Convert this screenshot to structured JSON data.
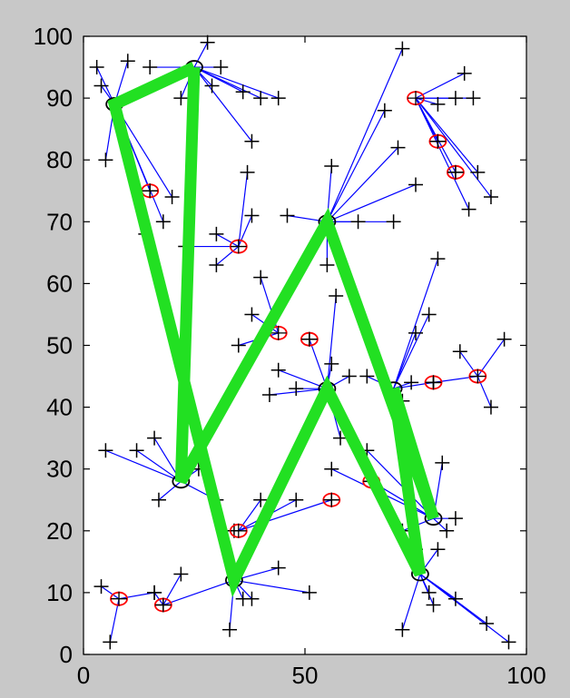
{
  "chart_data": {
    "type": "scatter",
    "title": "",
    "xlabel": "",
    "ylabel": "",
    "xlim": [
      0,
      100
    ],
    "ylim": [
      0,
      100
    ],
    "xticks": [
      0,
      50,
      100
    ],
    "yticks": [
      0,
      10,
      20,
      30,
      40,
      50,
      60,
      70,
      80,
      90,
      100
    ],
    "grid": false,
    "legend": "none",
    "colors": {
      "background": "#c8c8c8",
      "axes": "#ffffff",
      "nodes": "#000000",
      "links": "#0000ff",
      "facilities": "#ff0000",
      "hubs": "#000000",
      "route": "#22e022"
    },
    "route": [
      [
        25,
        95
      ],
      [
        7,
        89
      ],
      [
        34,
        12
      ],
      [
        55,
        43
      ],
      [
        76,
        13
      ],
      [
        70,
        43
      ],
      [
        79,
        22
      ],
      [
        55,
        70
      ],
      [
        22,
        28
      ],
      [
        25,
        95
      ]
    ],
    "hubs": [
      [
        7,
        89
      ],
      [
        25,
        95
      ],
      [
        22,
        28
      ],
      [
        34,
        12
      ],
      [
        55,
        70
      ],
      [
        55,
        43
      ],
      [
        70,
        43
      ],
      [
        79,
        22
      ],
      [
        76,
        13
      ]
    ],
    "facilities": [
      [
        8,
        9
      ],
      [
        18,
        8
      ],
      [
        35,
        20
      ],
      [
        15,
        75
      ],
      [
        35,
        66
      ],
      [
        44,
        52
      ],
      [
        51,
        51
      ],
      [
        56,
        25
      ],
      [
        65,
        28
      ],
      [
        75,
        90
      ],
      [
        80,
        83
      ],
      [
        84,
        78
      ],
      [
        79,
        44
      ],
      [
        89,
        45
      ]
    ],
    "clusters": [
      {
        "center": [
          8,
          9
        ],
        "members": [
          [
            4,
            11
          ],
          [
            6,
            2
          ],
          [
            16,
            10
          ]
        ]
      },
      {
        "center": [
          18,
          8
        ],
        "members": [
          [
            16,
            10
          ],
          [
            22,
            13
          ]
        ]
      },
      {
        "center": [
          34,
          12
        ],
        "members": [
          [
            18,
            8
          ],
          [
            33,
            4
          ],
          [
            36,
            9
          ],
          [
            38,
            9
          ],
          [
            44,
            14
          ],
          [
            51,
            10
          ]
        ]
      },
      {
        "center": [
          22,
          28
        ],
        "members": [
          [
            5,
            33
          ],
          [
            12,
            33
          ],
          [
            16,
            35
          ],
          [
            17,
            25
          ],
          [
            26,
            30
          ],
          [
            30,
            25
          ]
        ]
      },
      {
        "center": [
          35,
          20
        ],
        "members": [
          [
            40,
            25
          ],
          [
            48,
            25
          ],
          [
            56,
            25
          ],
          [
            34,
            20
          ]
        ]
      },
      {
        "center": [
          7,
          89
        ],
        "members": [
          [
            3,
            95
          ],
          [
            4,
            92
          ],
          [
            5,
            80
          ],
          [
            10,
            96
          ],
          [
            15,
            75
          ],
          [
            18,
            70
          ],
          [
            14,
            68
          ],
          [
            20,
            74
          ]
        ]
      },
      {
        "center": [
          25,
          95
        ],
        "members": [
          [
            15,
            95
          ],
          [
            22,
            90
          ],
          [
            28,
            99
          ],
          [
            31,
            95
          ],
          [
            29,
            92
          ],
          [
            36,
            91
          ],
          [
            40,
            90
          ],
          [
            38,
            83
          ],
          [
            44,
            90
          ]
        ]
      },
      {
        "center": [
          35,
          66
        ],
        "members": [
          [
            23,
            66
          ],
          [
            30,
            68
          ],
          [
            30,
            63
          ],
          [
            38,
            71
          ],
          [
            37,
            78
          ]
        ]
      },
      {
        "center": [
          44,
          52
        ],
        "members": [
          [
            40,
            61
          ],
          [
            35,
            50
          ],
          [
            38,
            55
          ]
        ]
      },
      {
        "center": [
          55,
          70
        ],
        "members": [
          [
            46,
            71
          ],
          [
            56,
            79
          ],
          [
            55,
            63
          ],
          [
            62,
            70
          ],
          [
            70,
            70
          ],
          [
            71,
            82
          ],
          [
            72,
            98
          ],
          [
            68,
            88
          ],
          [
            75,
            76
          ]
        ]
      },
      {
        "center": [
          55,
          43
        ],
        "members": [
          [
            51,
            51
          ],
          [
            44,
            46
          ],
          [
            42,
            42
          ],
          [
            48,
            43
          ],
          [
            56,
            47
          ],
          [
            57,
            58
          ],
          [
            60,
            45
          ],
          [
            58,
            35
          ]
        ]
      },
      {
        "center": [
          70,
          43
        ],
        "members": [
          [
            64,
            45
          ],
          [
            74,
            44
          ],
          [
            75,
            52
          ],
          [
            78,
            55
          ],
          [
            80,
            64
          ],
          [
            79,
            44
          ],
          [
            69,
            43
          ],
          [
            72,
            41
          ]
        ]
      },
      {
        "center": [
          79,
          22
        ],
        "members": [
          [
            64,
            33
          ],
          [
            65,
            28
          ],
          [
            72,
            20
          ],
          [
            75,
            30
          ],
          [
            81,
            31
          ],
          [
            84,
            22
          ],
          [
            82,
            20
          ],
          [
            56,
            30
          ]
        ]
      },
      {
        "center": [
          76,
          13
        ],
        "members": [
          [
            72,
            4
          ],
          [
            78,
            10
          ],
          [
            79,
            8
          ],
          [
            84,
            9
          ],
          [
            91,
            5
          ],
          [
            96,
            2
          ],
          [
            80,
            17
          ],
          [
            75,
            17
          ]
        ]
      },
      {
        "center": [
          75,
          90
        ],
        "members": [
          [
            80,
            89
          ],
          [
            84,
            90
          ],
          [
            88,
            90
          ],
          [
            86,
            94
          ],
          [
            80,
            83
          ],
          [
            84,
            78
          ],
          [
            87,
            72
          ],
          [
            92,
            74
          ],
          [
            89,
            78
          ]
        ]
      },
      {
        "center": [
          89,
          45
        ],
        "members": [
          [
            85,
            49
          ],
          [
            92,
            40
          ],
          [
            95,
            51
          ],
          [
            79,
            44
          ]
        ]
      }
    ]
  }
}
